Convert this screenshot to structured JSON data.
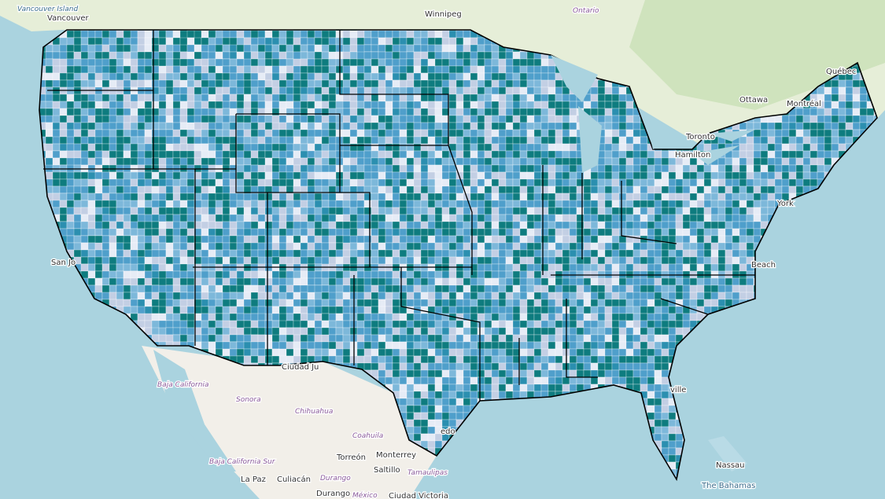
{
  "labels": [
    "Vancouver Island",
    "Vancouver",
    "Winnipeg",
    "Ontario",
    "Québec",
    "Ottawa",
    "Montréal",
    "Toronto",
    "Hamilton",
    "San Jo",
    "Ciudad Ju",
    "Baja California",
    "Sonora",
    "Chihuahua",
    "Coahuila",
    "Torreón",
    "Monterrey",
    "Saltillo",
    "Tamaulipas",
    "Baja California Sur",
    "La Paz",
    "Culiacán",
    "Durango",
    "Durango",
    "México",
    "Ciudad Victoria",
    "Nassau",
    "The Bahamas",
    "Beach",
    "ville",
    "edo",
    "York"
  ]
}
